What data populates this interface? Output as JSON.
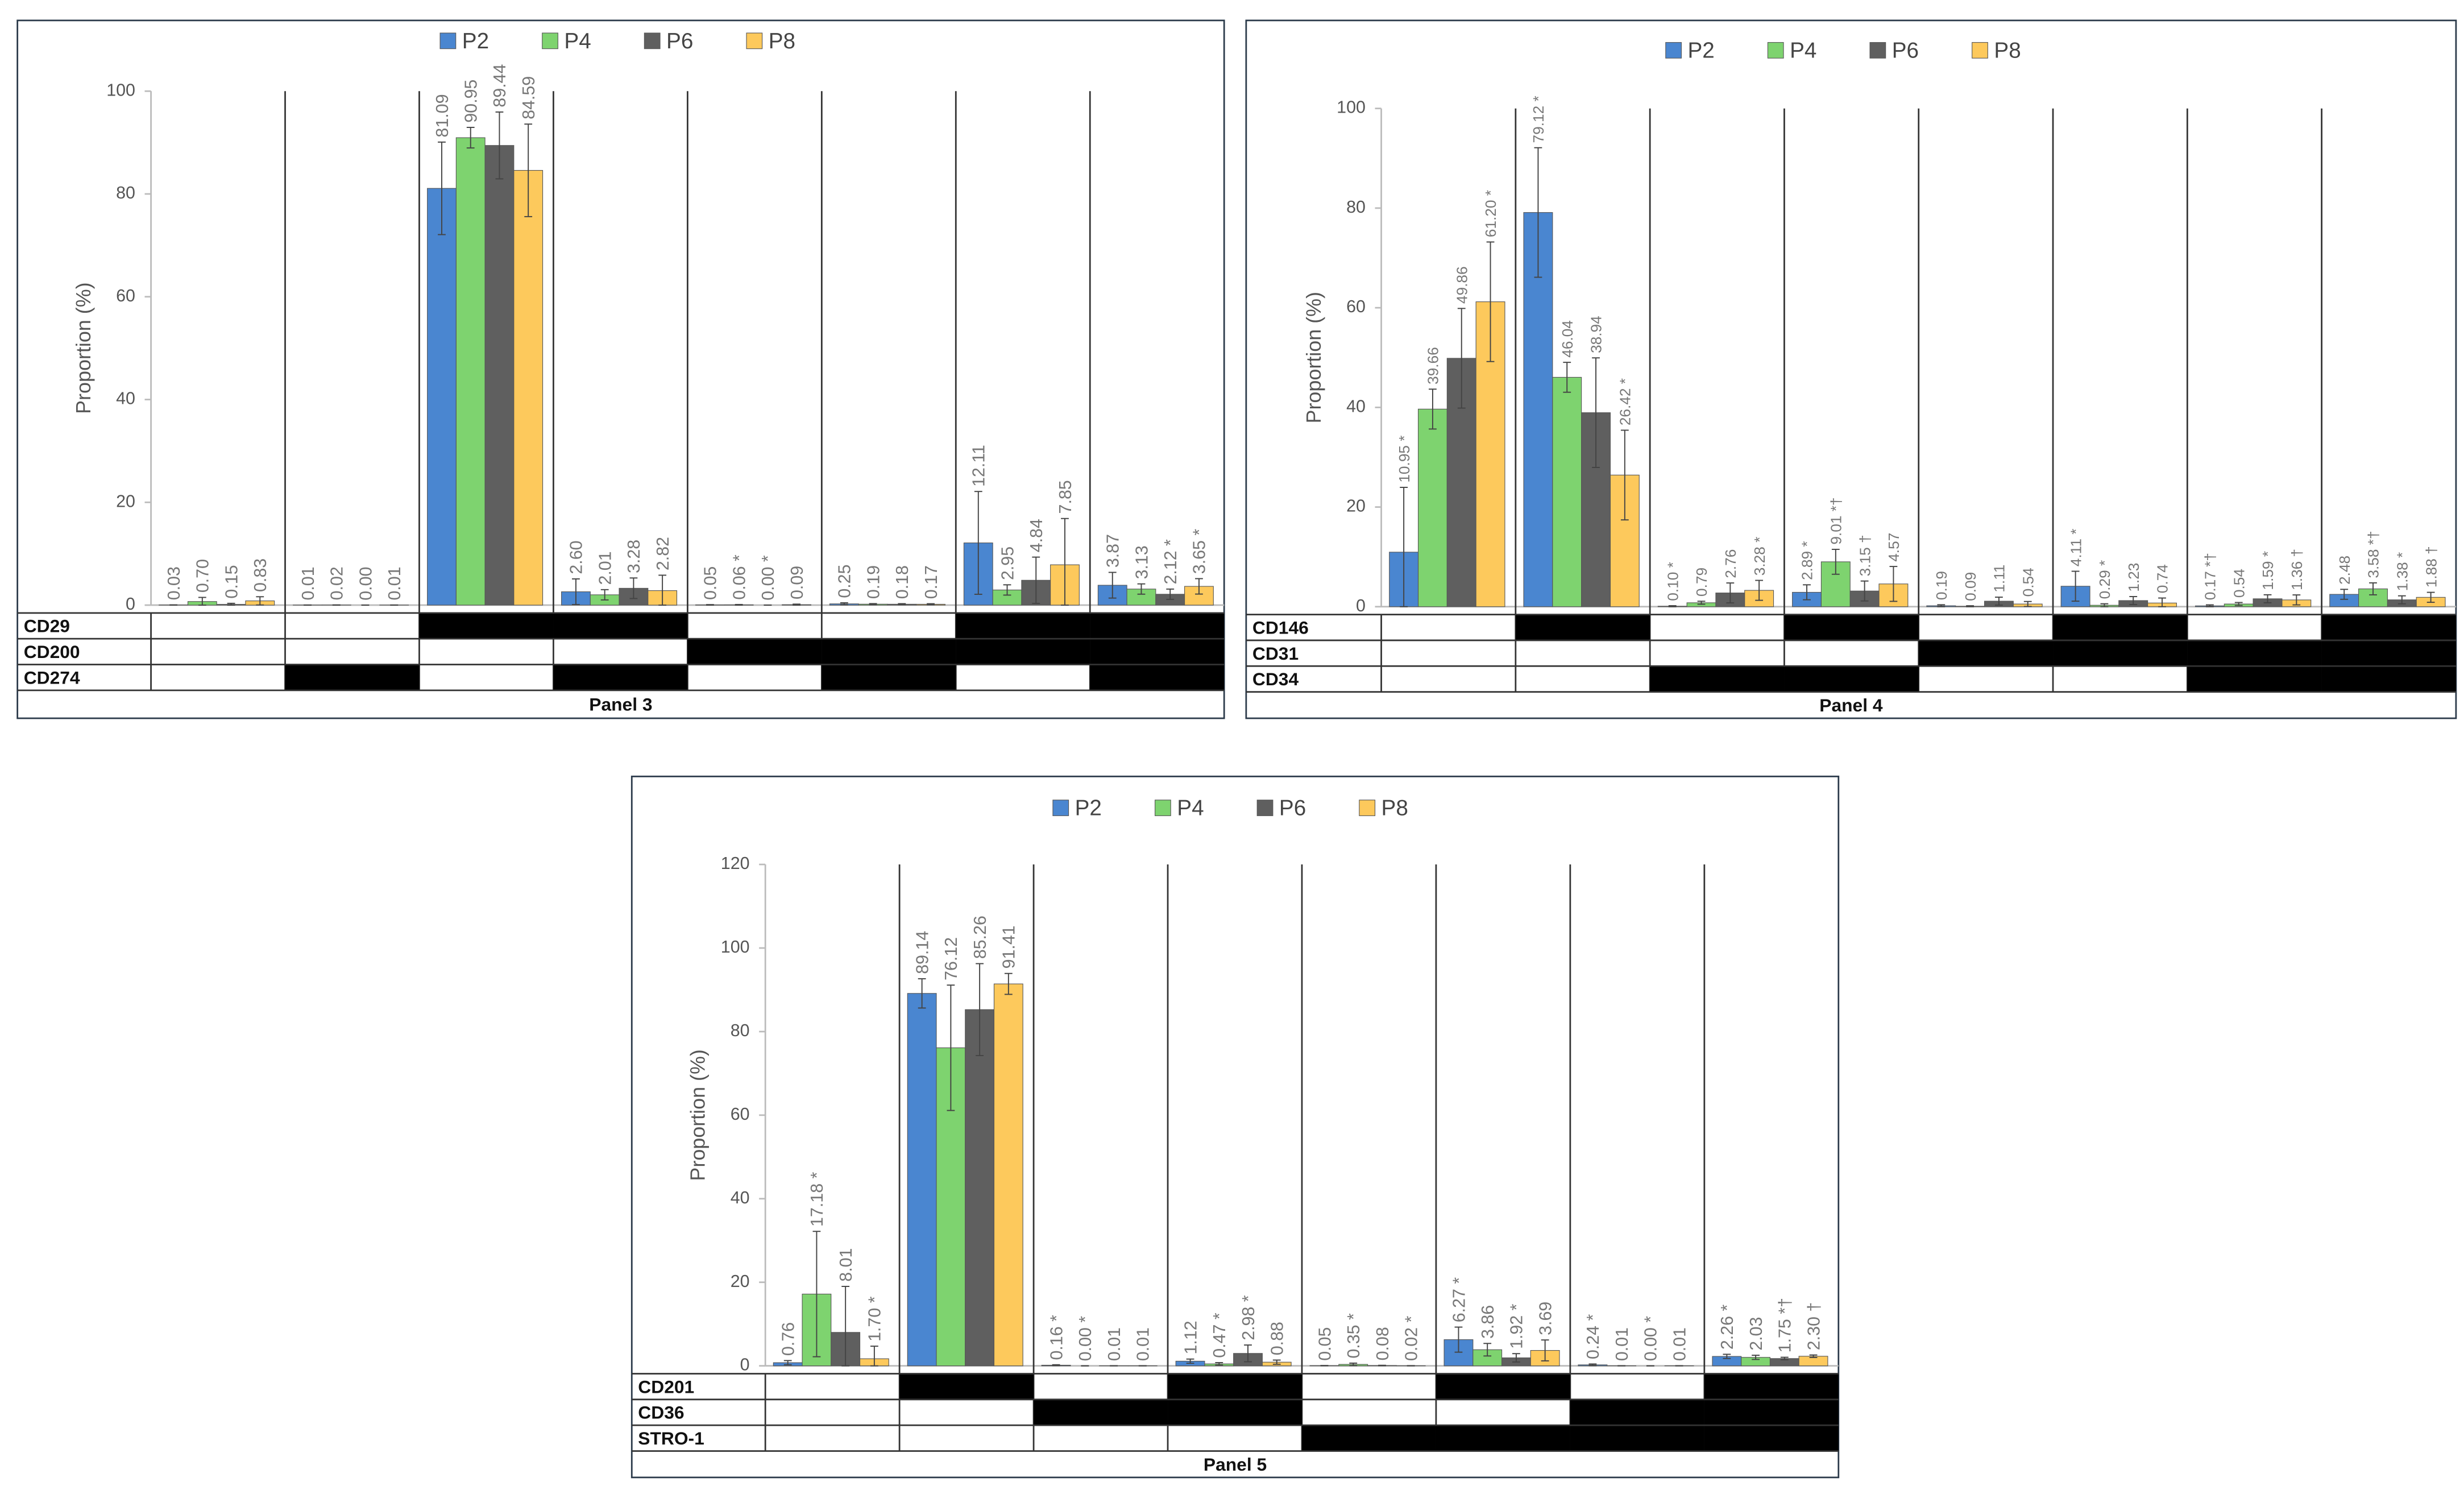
{
  "chart_data": [
    {
      "type": "bar",
      "title": "Panel 3",
      "ylabel": "Proportion (%)",
      "ylim": [
        0,
        100
      ],
      "yticks": [
        0,
        20,
        40,
        60,
        80,
        100
      ],
      "markers": [
        {
          "name": "CD29",
          "positive": [
            false,
            false,
            true,
            true,
            false,
            false,
            true,
            true
          ]
        },
        {
          "name": "CD200",
          "positive": [
            false,
            false,
            false,
            false,
            true,
            true,
            true,
            true
          ]
        },
        {
          "name": "CD274",
          "positive": [
            false,
            true,
            false,
            true,
            false,
            true,
            false,
            true
          ]
        }
      ],
      "series": [
        {
          "name": "P2",
          "color": "#4a86d0",
          "values": [
            0.03,
            0.01,
            81.09,
            2.6,
            0.05,
            0.25,
            12.11,
            3.87
          ],
          "value_labels": [
            "0.03",
            "0.01",
            "81.09",
            "2.60",
            "0.05",
            "0.25",
            "12.11",
            "3.87"
          ],
          "errors": [
            0.02,
            0.01,
            9,
            2.5,
            0.05,
            0.2,
            10,
            2.5
          ]
        },
        {
          "name": "P4",
          "color": "#7ed36f",
          "values": [
            0.7,
            0.02,
            90.95,
            2.01,
            0.06,
            0.19,
            2.95,
            3.13
          ],
          "value_labels": [
            "0.70",
            "0.02",
            "90.95",
            "2.01",
            "0.06 *",
            "0.19",
            "2.95",
            "3.13"
          ],
          "errors": [
            0.8,
            0.02,
            2,
            1,
            0.06,
            0.1,
            1,
            1
          ]
        },
        {
          "name": "P6",
          "color": "#5f5f5f",
          "values": [
            0.15,
            0.0,
            89.44,
            3.28,
            0.0,
            0.18,
            4.84,
            2.12
          ],
          "value_labels": [
            "0.15",
            "0.00",
            "89.44",
            "3.28",
            "0.00 *",
            "0.18",
            "4.84",
            "2.12 *"
          ],
          "errors": [
            0.2,
            0,
            6.5,
            2,
            0,
            0.1,
            4.5,
            1
          ]
        },
        {
          "name": "P8",
          "color": "#fdc95c",
          "values": [
            0.83,
            0.01,
            84.59,
            2.82,
            0.09,
            0.17,
            7.85,
            3.65
          ],
          "value_labels": [
            "0.83",
            "0.01",
            "84.59",
            "2.82",
            "0.09",
            "0.17",
            "7.85",
            "3.65 *"
          ],
          "errors": [
            0.8,
            0.01,
            9,
            3,
            0.1,
            0.1,
            9,
            1.5
          ]
        }
      ]
    },
    {
      "type": "bar",
      "title": "Panel 4",
      "ylabel": "Proportion (%)",
      "ylim": [
        0,
        100
      ],
      "yticks": [
        0,
        20,
        40,
        60,
        80,
        100
      ],
      "markers": [
        {
          "name": "CD146",
          "positive": [
            false,
            true,
            false,
            true,
            false,
            true,
            false,
            true
          ]
        },
        {
          "name": "CD31",
          "positive": [
            false,
            false,
            false,
            false,
            true,
            true,
            true,
            true
          ]
        },
        {
          "name": "CD34",
          "positive": [
            false,
            false,
            true,
            true,
            false,
            false,
            true,
            true
          ]
        }
      ],
      "series": [
        {
          "name": "P2",
          "color": "#4a86d0",
          "values": [
            10.95,
            79.12,
            0.1,
            2.89,
            0.19,
            4.11,
            0.17,
            2.48
          ],
          "value_labels": [
            "10.95 *",
            "79.12 *",
            "0.10 *",
            "2.89 *",
            "0.19",
            "4.11 *",
            "0.17 *†",
            "2.48"
          ],
          "errors": [
            13,
            13,
            0.1,
            1.5,
            0.2,
            3,
            0.2,
            1
          ]
        },
        {
          "name": "P4",
          "color": "#7ed36f",
          "values": [
            39.66,
            46.04,
            0.79,
            9.01,
            0.09,
            0.29,
            0.54,
            3.58
          ],
          "value_labels": [
            "39.66",
            "46.04",
            "0.79",
            "9.01 *†",
            "0.09",
            "0.29 *",
            "0.54",
            "3.58 *†"
          ],
          "errors": [
            4,
            3,
            0.3,
            2.5,
            0.1,
            0.3,
            0.3,
            1.2
          ]
        },
        {
          "name": "P6",
          "color": "#5f5f5f",
          "values": [
            49.86,
            38.94,
            2.76,
            3.15,
            1.11,
            1.23,
            1.59,
            1.38
          ],
          "value_labels": [
            "49.86",
            "38.94",
            "2.76",
            "3.15 †",
            "1.11",
            "1.23",
            "1.59 *",
            "1.38 *"
          ],
          "errors": [
            10,
            11,
            2,
            2,
            0.8,
            0.8,
            0.8,
            0.8
          ]
        },
        {
          "name": "P8",
          "color": "#fdc95c",
          "values": [
            61.2,
            26.42,
            3.28,
            4.57,
            0.54,
            0.74,
            1.36,
            1.88
          ],
          "value_labels": [
            "61.20 *",
            "26.42 *",
            "3.28 *",
            "4.57",
            "0.54",
            "0.74",
            "1.36 †",
            "1.88 †"
          ],
          "errors": [
            12,
            9,
            2,
            3.5,
            0.5,
            1,
            1,
            1
          ]
        }
      ]
    },
    {
      "type": "bar",
      "title": "Panel 5",
      "ylabel": "Proportion (%)",
      "ylim": [
        0,
        120
      ],
      "yticks": [
        0,
        20,
        40,
        60,
        80,
        100,
        120
      ],
      "markers": [
        {
          "name": "CD201",
          "positive": [
            false,
            true,
            false,
            true,
            false,
            true,
            false,
            true
          ]
        },
        {
          "name": "CD36",
          "positive": [
            false,
            false,
            true,
            true,
            false,
            false,
            true,
            true
          ]
        },
        {
          "name": "STRO-1",
          "positive": [
            false,
            false,
            false,
            false,
            true,
            true,
            true,
            true
          ]
        }
      ],
      "series": [
        {
          "name": "P2",
          "color": "#4a86d0",
          "values": [
            0.76,
            89.14,
            0.16,
            1.12,
            0.05,
            6.27,
            0.24,
            2.26
          ],
          "value_labels": [
            "0.76",
            "89.14",
            "0.16 *",
            "1.12",
            "0.05",
            "6.27 *",
            "0.24 *",
            "2.26 *"
          ],
          "errors": [
            0.5,
            3.5,
            0.1,
            0.5,
            0.03,
            3,
            0.2,
            0.5
          ]
        },
        {
          "name": "P4",
          "color": "#7ed36f",
          "values": [
            17.18,
            76.12,
            0.0,
            0.47,
            0.35,
            3.86,
            0.01,
            2.03
          ],
          "value_labels": [
            "17.18 *",
            "76.12",
            "0.00 *",
            "0.47 *",
            "0.35 *",
            "3.86",
            "0.01",
            "2.03"
          ],
          "errors": [
            15,
            15,
            0,
            0.3,
            0.3,
            1.5,
            0.01,
            0.5
          ]
        },
        {
          "name": "P6",
          "color": "#5f5f5f",
          "values": [
            8.01,
            85.26,
            0.01,
            2.98,
            0.08,
            1.92,
            0.0,
            1.75
          ],
          "value_labels": [
            "8.01",
            "85.26",
            "0.01",
            "2.98 *",
            "0.08",
            "1.92 *",
            "0.00 *",
            "1.75 *†"
          ],
          "errors": [
            11,
            11,
            0.01,
            2,
            0.05,
            1,
            0,
            0.3
          ]
        },
        {
          "name": "P8",
          "color": "#fdc95c",
          "values": [
            1.7,
            91.41,
            0.01,
            0.88,
            0.02,
            3.69,
            0.01,
            2.3
          ],
          "value_labels": [
            "1.70 *",
            "91.41",
            "0.01",
            "0.88",
            "0.02 *",
            "3.69",
            "0.01",
            "2.30 †"
          ],
          "errors": [
            3,
            2.5,
            0.01,
            0.5,
            0.02,
            2.5,
            0.01,
            0.3
          ]
        }
      ]
    }
  ]
}
